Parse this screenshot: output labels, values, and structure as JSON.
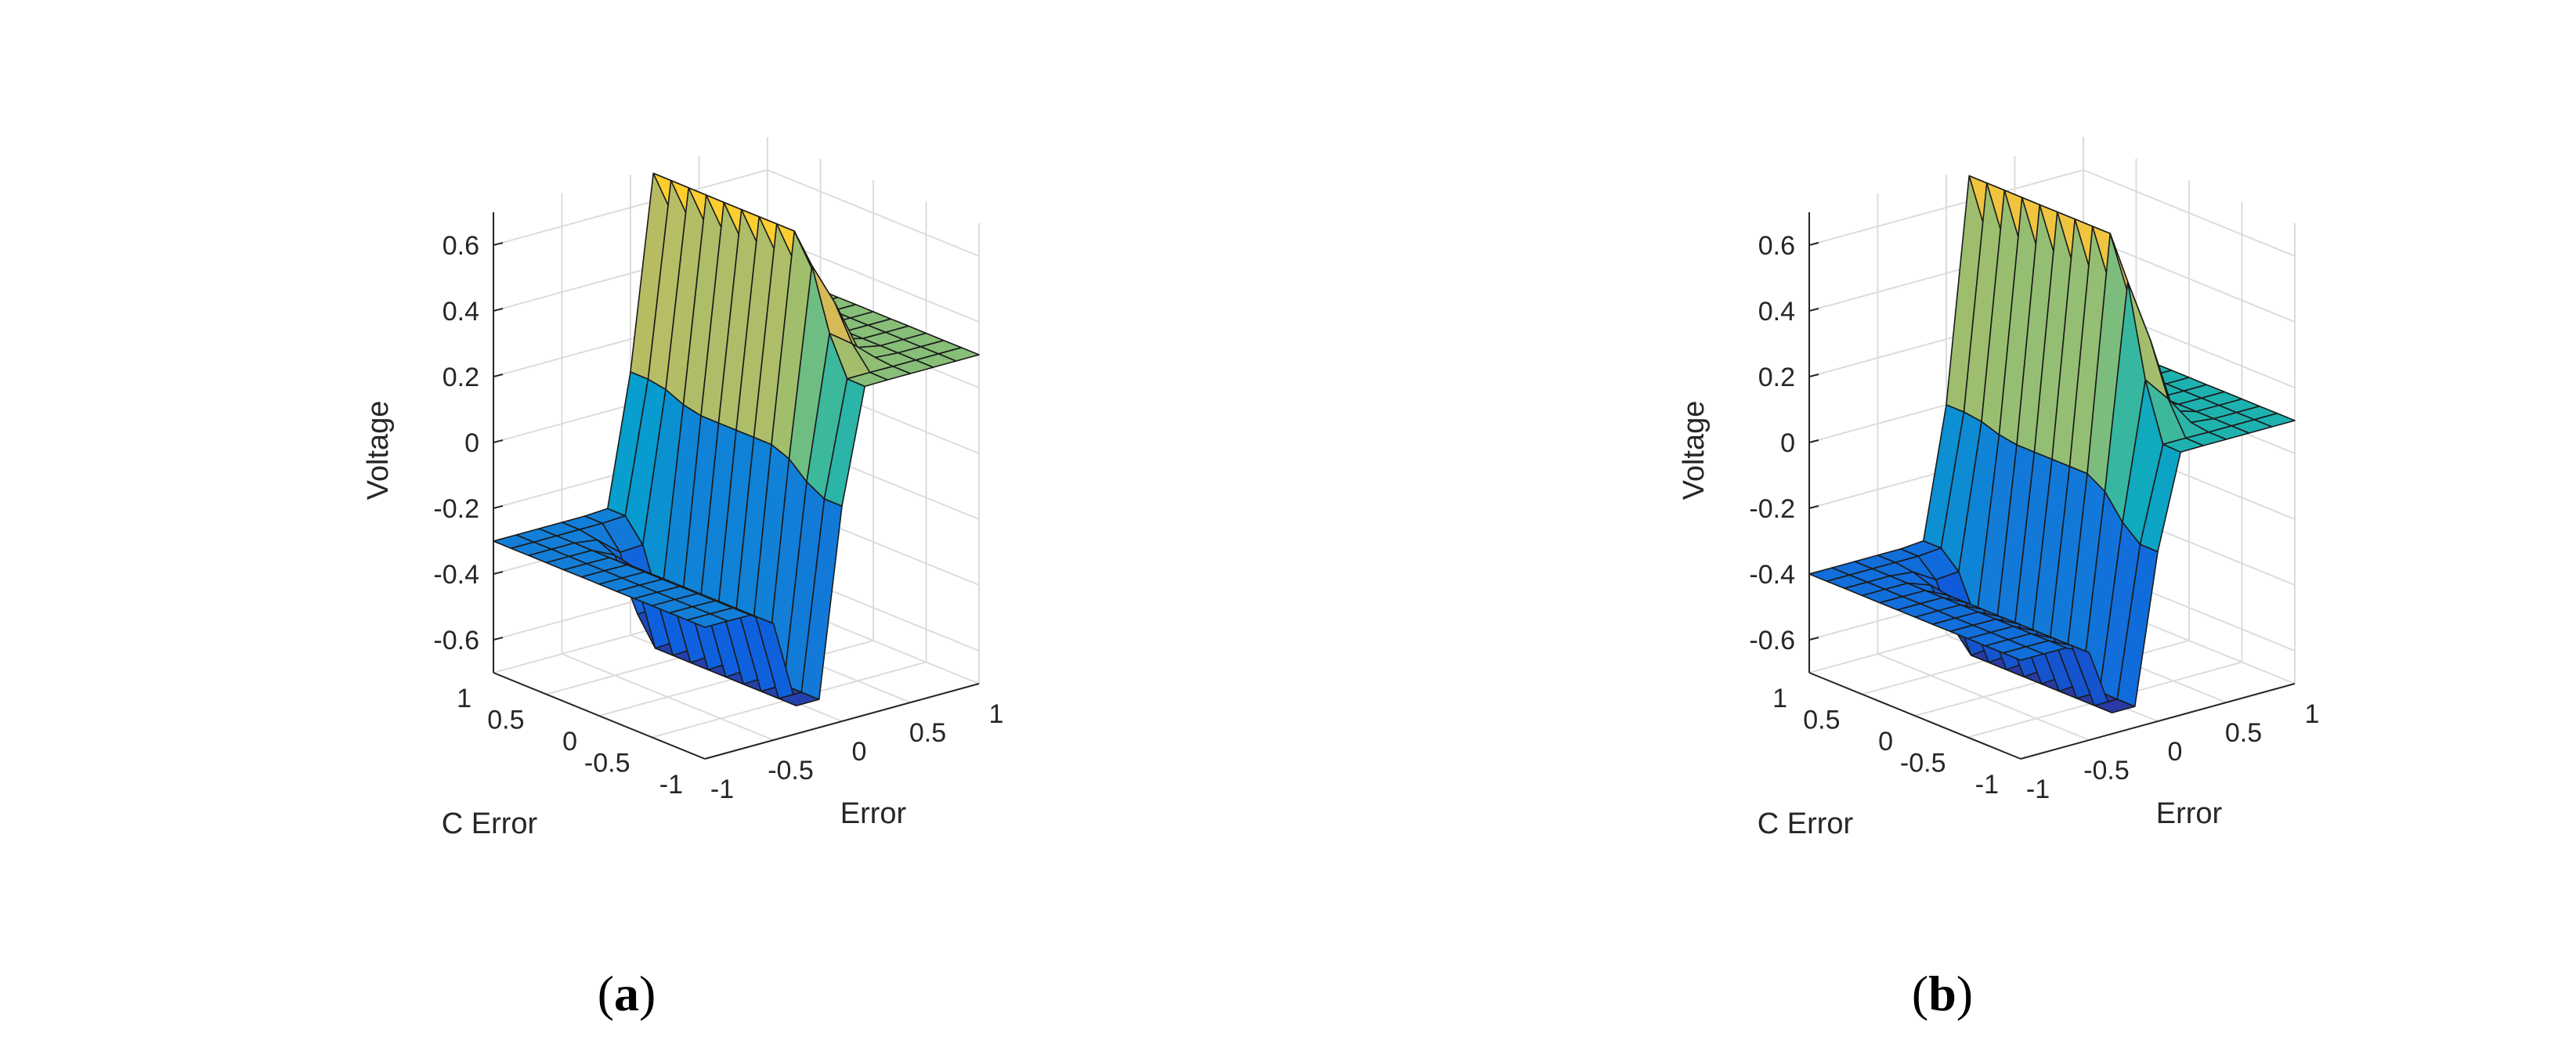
{
  "chart_data": [
    {
      "type": "surface",
      "panel_label": "a",
      "caption_open": "(",
      "caption_close": ")",
      "xlabel": "Error",
      "ylabel": "C Error",
      "zlabel": "Voltage",
      "xlim": [
        -1,
        1
      ],
      "ylim": [
        -1,
        1
      ],
      "zlim": [
        -0.7,
        0.7
      ],
      "x_ticks": [
        "-1",
        "-0.5",
        "0",
        "0.5",
        "1"
      ],
      "y_ticks": [
        "-1",
        "-0.5",
        "0",
        "0.5",
        "1"
      ],
      "z_ticks": [
        "-0.6",
        "-0.4",
        "-0.2",
        "0",
        "0.2",
        "0.4",
        "0.6"
      ],
      "grid": true,
      "colormap": "parula",
      "low_plateau": -0.3,
      "high_plateau": 0.3,
      "ridge_peak": 0.7,
      "trough_min": -0.7
    },
    {
      "type": "surface",
      "panel_label": "b",
      "caption_open": "(",
      "caption_close": ")",
      "xlabel": "Error",
      "ylabel": "C Error",
      "zlabel": "Voltage",
      "xlim": [
        -1,
        1
      ],
      "ylim": [
        -1,
        1
      ],
      "zlim": [
        -0.7,
        0.7
      ],
      "x_ticks": [
        "-1",
        "-0.5",
        "0",
        "0.5",
        "1"
      ],
      "y_ticks": [
        "-1",
        "-0.5",
        "0",
        "0.5",
        "1"
      ],
      "z_ticks": [
        "-0.6",
        "-0.4",
        "-0.2",
        "0",
        "0.2",
        "0.4",
        "0.6"
      ],
      "grid": true,
      "colormap": "parula",
      "low_plateau": -0.4,
      "high_plateau": 0.1,
      "ridge_peak": 0.7,
      "trough_min": -0.7
    }
  ]
}
